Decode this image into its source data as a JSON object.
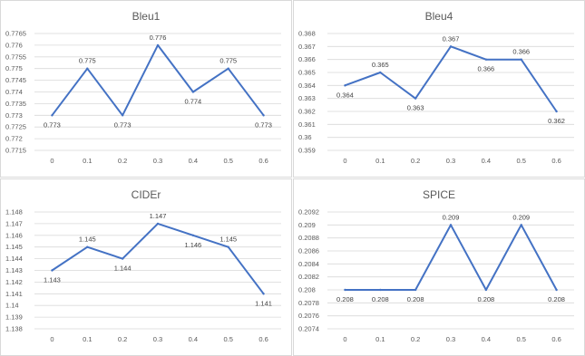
{
  "colors": {
    "series": "#4472c4",
    "grid": "#d9d9d9",
    "text": "#595959"
  },
  "chart_data": [
    {
      "type": "line",
      "title": "Bleu1",
      "x": [
        "0",
        "0.1",
        "0.2",
        "0.3",
        "0.4",
        "0.5",
        "0.6"
      ],
      "values": [
        0.773,
        0.775,
        0.773,
        0.776,
        0.774,
        0.775,
        0.773
      ],
      "data_labels": [
        "0.773",
        "0.775",
        "0.773",
        "0.776",
        "0.774",
        "0.775",
        "0.773"
      ],
      "label_pos": [
        "below",
        "above",
        "below",
        "above",
        "below",
        "above",
        "below"
      ],
      "ylim": [
        0.7715,
        0.7765
      ],
      "yticks": [
        "0.7765",
        "0.776",
        "0.7755",
        "0.775",
        "0.7745",
        "0.774",
        "0.7735",
        "0.773",
        "0.7725",
        "0.772",
        "0.7715"
      ],
      "grid": true
    },
    {
      "type": "line",
      "title": "Bleu4",
      "x": [
        "0",
        "0.1",
        "0.2",
        "0.3",
        "0.4",
        "0.5",
        "0.6"
      ],
      "values": [
        0.364,
        0.365,
        0.363,
        0.367,
        0.366,
        0.366,
        0.362
      ],
      "data_labels": [
        "0.364",
        "0.365",
        "0.363",
        "0.367",
        "0.366",
        "0.366",
        "0.362"
      ],
      "label_pos": [
        "below",
        "above",
        "below",
        "above",
        "below",
        "above",
        "below"
      ],
      "ylim": [
        0.359,
        0.368
      ],
      "yticks": [
        "0.368",
        "0.367",
        "0.366",
        "0.365",
        "0.364",
        "0.363",
        "0.362",
        "0.361",
        "0.36",
        "0.359"
      ],
      "grid": true
    },
    {
      "type": "line",
      "title": "CIDEr",
      "x": [
        "0",
        "0.1",
        "0.2",
        "0.3",
        "0.4",
        "0.5",
        "0.6"
      ],
      "values": [
        1.143,
        1.145,
        1.144,
        1.147,
        1.146,
        1.145,
        1.141
      ],
      "data_labels": [
        "1.143",
        "1.145",
        "1.144",
        "1.147",
        "1.146",
        "1.145",
        "1.141"
      ],
      "label_pos": [
        "below",
        "above",
        "below",
        "above",
        "below",
        "above",
        "below"
      ],
      "ylim": [
        1.138,
        1.148
      ],
      "yticks": [
        "1.148",
        "1.147",
        "1.146",
        "1.145",
        "1.144",
        "1.143",
        "1.142",
        "1.141",
        "1.14",
        "1.139",
        "1.138"
      ],
      "grid": true
    },
    {
      "type": "line",
      "title": "SPICE",
      "x": [
        "0",
        "0.1",
        "0.2",
        "0.3",
        "0.4",
        "0.5",
        "0.6"
      ],
      "values": [
        0.208,
        0.208,
        0.208,
        0.209,
        0.208,
        0.209,
        0.208
      ],
      "data_labels": [
        "0.208",
        "0.208",
        "0.208",
        "0.209",
        "0.208",
        "0.209",
        "0.208"
      ],
      "label_pos": [
        "below",
        "below",
        "below",
        "above",
        "below",
        "above",
        "below"
      ],
      "ylim": [
        0.2074,
        0.2092
      ],
      "yticks": [
        "0.2092",
        "0.209",
        "0.2088",
        "0.2086",
        "0.2084",
        "0.2082",
        "0.208",
        "0.2078",
        "0.2076",
        "0.2074"
      ],
      "grid": true
    }
  ]
}
